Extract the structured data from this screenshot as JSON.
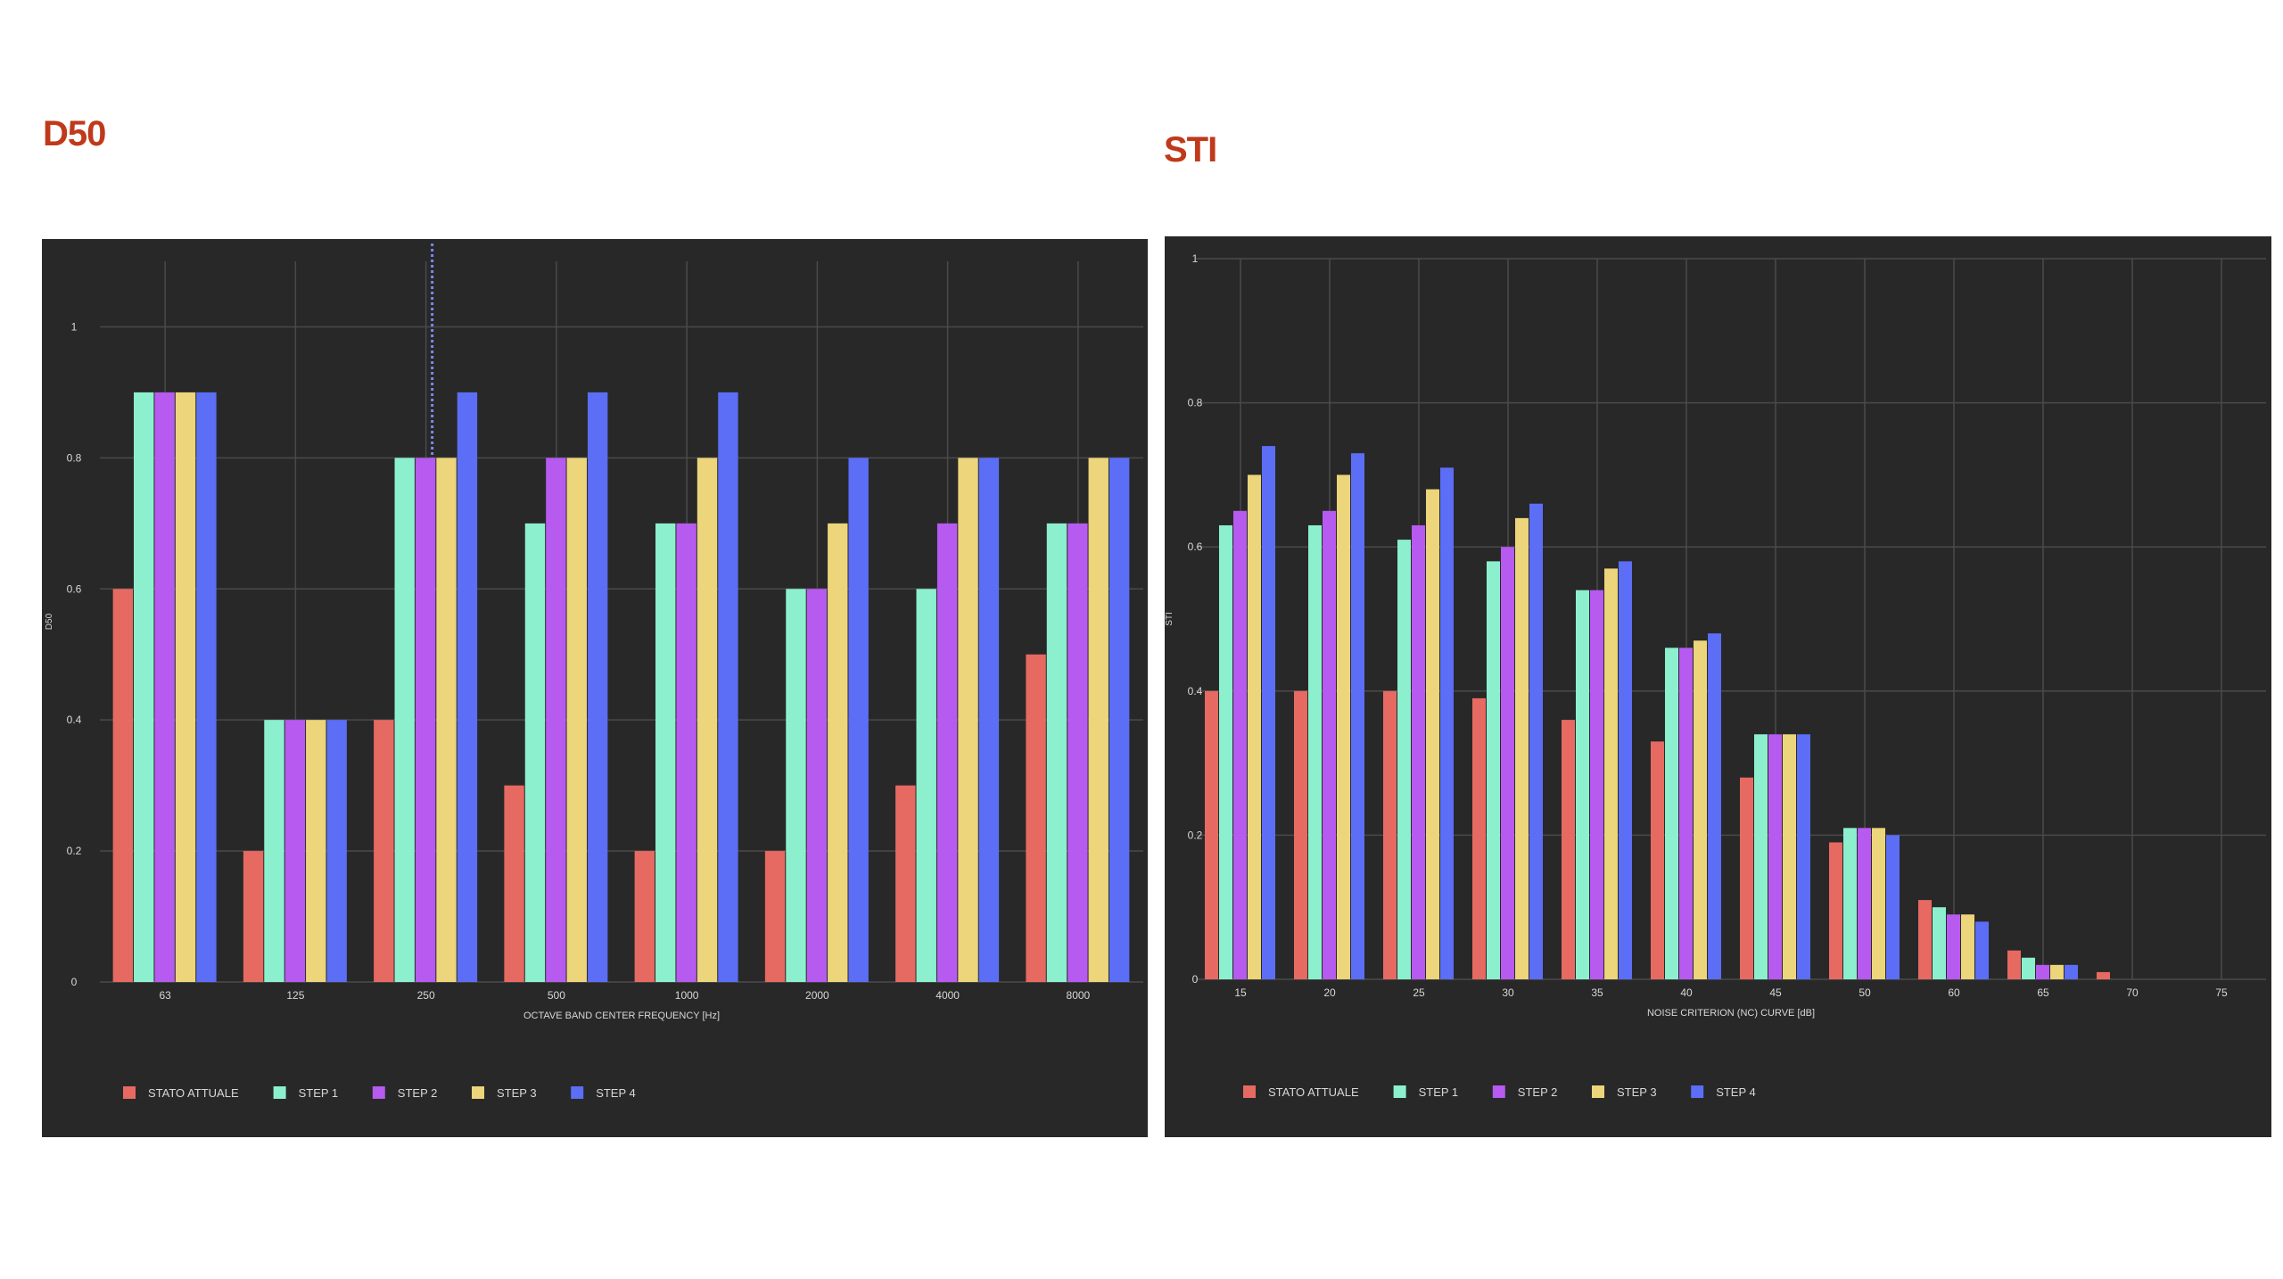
{
  "page": {
    "heading_d50": "D50",
    "heading_sti": "STI"
  },
  "colors": {
    "heading": "#c0391b",
    "panel_bg": "#282828",
    "grid": "#4a4a4a",
    "series": [
      "#e66a61",
      "#8cf0cf",
      "#b65af0",
      "#ecd57a",
      "#5b6ef5"
    ]
  },
  "chart_data": [
    {
      "type": "bar",
      "title": "D50",
      "categories": [
        "63",
        "125",
        "250",
        "500",
        "1000",
        "2000",
        "4000",
        "8000"
      ],
      "xlabel": "OCTAVE BAND CENTER FREQUENCY [Hz]",
      "ylabel": "D50",
      "ylim": [
        0,
        1.1
      ],
      "yticks": [
        "0",
        "0.2",
        "0.4",
        "0.6",
        "0.8",
        "1"
      ],
      "grid": true,
      "legend_position": "bottom-left",
      "hover_marker_category": "250",
      "series": [
        {
          "name": "STATO ATTUALE",
          "values": [
            0.6,
            0.2,
            0.4,
            0.3,
            0.2,
            0.2,
            0.3,
            0.5
          ]
        },
        {
          "name": "STEP 1",
          "values": [
            0.9,
            0.4,
            0.8,
            0.7,
            0.7,
            0.6,
            0.6,
            0.7
          ]
        },
        {
          "name": "STEP 2",
          "values": [
            0.9,
            0.4,
            0.8,
            0.8,
            0.7,
            0.6,
            0.7,
            0.7
          ]
        },
        {
          "name": "STEP 3",
          "values": [
            0.9,
            0.4,
            0.8,
            0.8,
            0.8,
            0.7,
            0.8,
            0.8
          ]
        },
        {
          "name": "STEP 4",
          "values": [
            0.9,
            0.4,
            0.9,
            0.9,
            0.9,
            0.8,
            0.8,
            0.8
          ]
        }
      ]
    },
    {
      "type": "bar",
      "title": "STI",
      "categories": [
        "15",
        "20",
        "25",
        "30",
        "35",
        "40",
        "45",
        "50",
        "60",
        "65",
        "70",
        "75"
      ],
      "xlabel": "NOISE CRITERION (NC) CURVE [dB]",
      "ylabel": "STI",
      "ylim": [
        0,
        1
      ],
      "yticks": [
        "0",
        "0.2",
        "0.4",
        "0.6",
        "0.8",
        "1"
      ],
      "grid": true,
      "legend_position": "bottom-left",
      "series": [
        {
          "name": "STATO ATTUALE",
          "values": [
            0.4,
            0.4,
            0.4,
            0.39,
            0.36,
            0.33,
            0.28,
            0.19,
            0.11,
            0.04,
            0.01,
            0
          ]
        },
        {
          "name": "STEP 1",
          "values": [
            0.63,
            0.63,
            0.61,
            0.58,
            0.54,
            0.46,
            0.34,
            0.21,
            0.1,
            0.03,
            0,
            0
          ]
        },
        {
          "name": "STEP 2",
          "values": [
            0.65,
            0.65,
            0.63,
            0.6,
            0.54,
            0.46,
            0.34,
            0.21,
            0.09,
            0.02,
            0,
            0
          ]
        },
        {
          "name": "STEP 3",
          "values": [
            0.7,
            0.7,
            0.68,
            0.64,
            0.57,
            0.47,
            0.34,
            0.21,
            0.09,
            0.02,
            0,
            0
          ]
        },
        {
          "name": "STEP 4",
          "values": [
            0.74,
            0.73,
            0.71,
            0.66,
            0.58,
            0.48,
            0.34,
            0.2,
            0.08,
            0.02,
            0,
            0
          ]
        }
      ]
    }
  ]
}
